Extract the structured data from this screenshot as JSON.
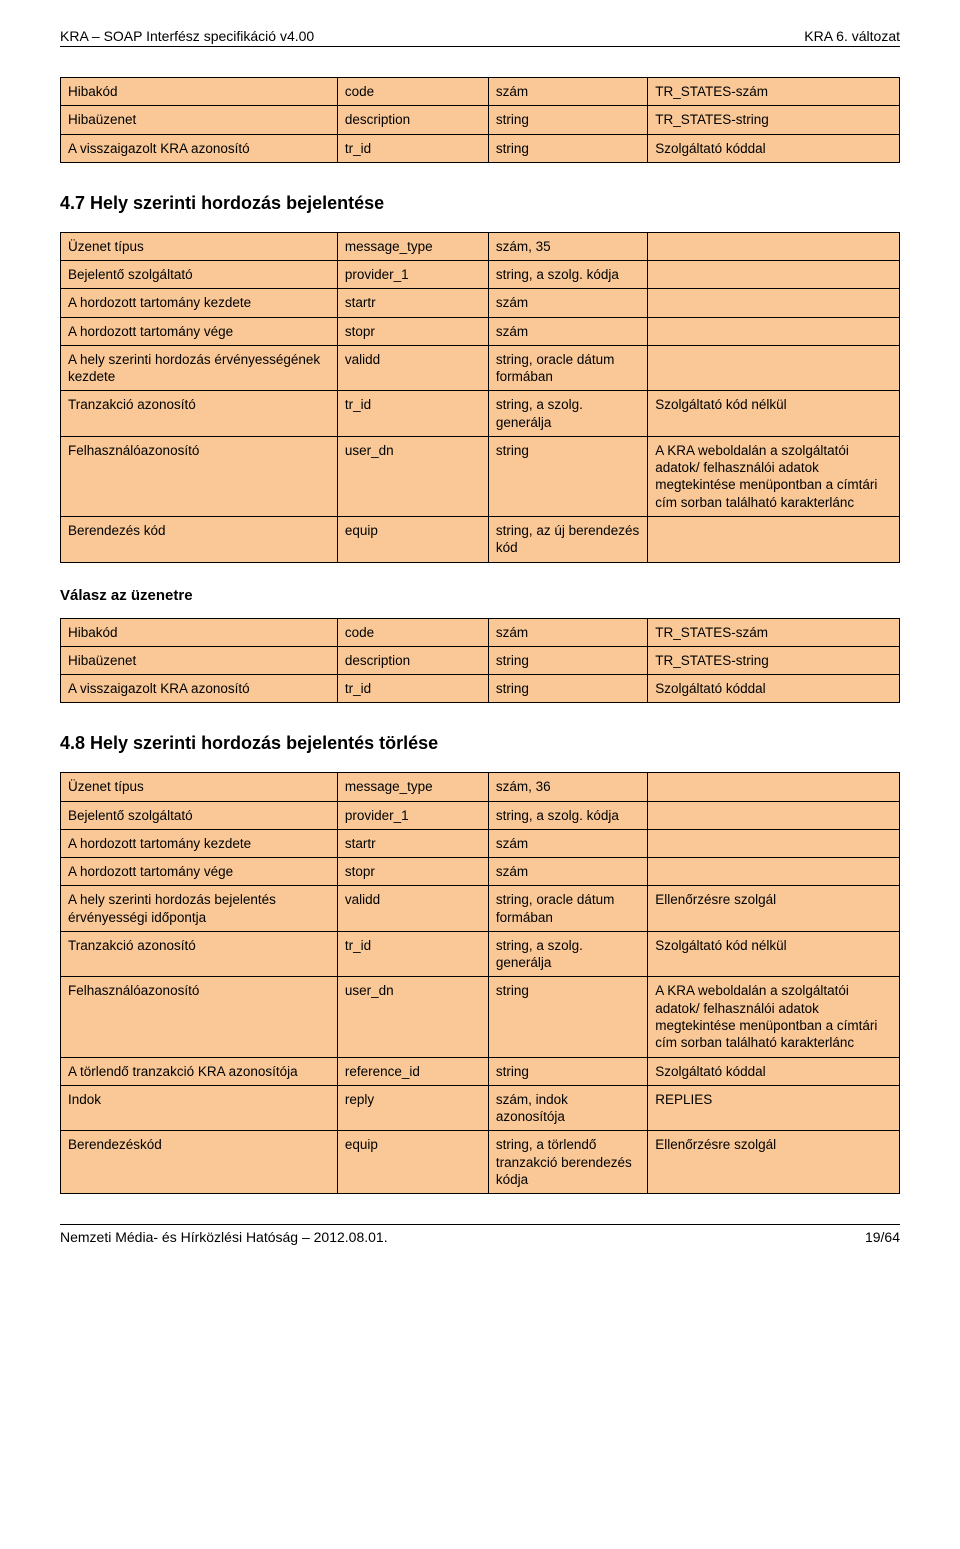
{
  "header": {
    "left": "KRA – SOAP Interfész specifikáció v4.00",
    "right": "KRA 6. változat"
  },
  "colors": {
    "row_shade": "#f9c896",
    "border": "#000000",
    "text": "#000000",
    "background": "#ffffff"
  },
  "table_top": {
    "rows": [
      [
        "Hibakód",
        "code",
        "szám",
        "TR_STATES-szám"
      ],
      [
        "Hibaüzenet",
        "description",
        "string",
        "TR_STATES-string"
      ],
      [
        "A visszaigazolt KRA azonosító",
        "tr_id",
        "string",
        "Szolgáltató kóddal"
      ]
    ]
  },
  "section47": {
    "heading": "4.7   Hely szerinti hordozás bejelentése",
    "table": {
      "rows": [
        [
          "Üzenet típus",
          "message_type",
          "szám, 35",
          ""
        ],
        [
          "Bejelentő szolgáltató",
          "provider_1",
          "string, a szolg. kódja",
          ""
        ],
        [
          "A hordozott tartomány kezdete",
          "startr",
          "szám",
          ""
        ],
        [
          "A hordozott tartomány vége",
          "stopr",
          "szám",
          ""
        ],
        [
          "A hely szerinti hordozás érvényességének kezdete",
          "validd",
          "string, oracle dátum formában",
          ""
        ],
        [
          "Tranzakció azonosító",
          "tr_id",
          "string, a szolg. generálja",
          "Szolgáltató kód nélkül"
        ],
        [
          "Felhasználóazonosító",
          "user_dn",
          "string",
          "A KRA weboldalán a szolgáltatói adatok/ felhasználói adatok megtekintése menüpontban a címtári cím sorban található karakterlánc"
        ],
        [
          "Berendezés kód",
          "equip",
          "string, az új berendezés kód",
          ""
        ]
      ]
    },
    "response_heading": "Válasz az üzenetre",
    "response_table": {
      "rows": [
        [
          "Hibakód",
          "code",
          "szám",
          "TR_STATES-szám"
        ],
        [
          "Hibaüzenet",
          "description",
          "string",
          "TR_STATES-string"
        ],
        [
          "A visszaigazolt KRA azonosító",
          "tr_id",
          "string",
          "Szolgáltató kóddal"
        ]
      ]
    }
  },
  "section48": {
    "heading": "4.8   Hely szerinti hordozás bejelentés törlése",
    "table": {
      "rows": [
        [
          "Üzenet típus",
          "message_type",
          "szám, 36",
          ""
        ],
        [
          "Bejelentő szolgáltató",
          "provider_1",
          "string, a szolg. kódja",
          ""
        ],
        [
          "A hordozott tartomány kezdete",
          "startr",
          "szám",
          ""
        ],
        [
          "A hordozott tartomány vége",
          "stopr",
          "szám",
          ""
        ],
        [
          "A hely szerinti hordozás bejelentés érvényességi időpontja",
          "validd",
          "string, oracle dátum formában",
          "Ellenőrzésre szolgál"
        ],
        [
          "Tranzakció azonosító",
          "tr_id",
          "string, a szolg. generálja",
          "Szolgáltató kód nélkül"
        ],
        [
          "Felhasználóazonosító",
          "user_dn",
          "string",
          "A KRA weboldalán a szolgáltatói adatok/ felhasználói adatok megtekintése menüpontban a címtári cím sorban található karakterlánc"
        ],
        [
          "A törlendő tranzakció KRA azonosítója",
          "reference_id",
          "string",
          "Szolgáltató kóddal"
        ],
        [
          "Indok",
          "reply",
          "szám, indok azonosítója",
          "REPLIES"
        ],
        [
          "Berendezéskód",
          "equip",
          "string, a törlendő tranzakció berendezés kódja",
          "Ellenőrzésre szolgál"
        ]
      ]
    }
  },
  "footer": {
    "left": "Nemzeti Média- és Hírközlési Hatóság – 2012.08.01.",
    "right": "19/64"
  }
}
